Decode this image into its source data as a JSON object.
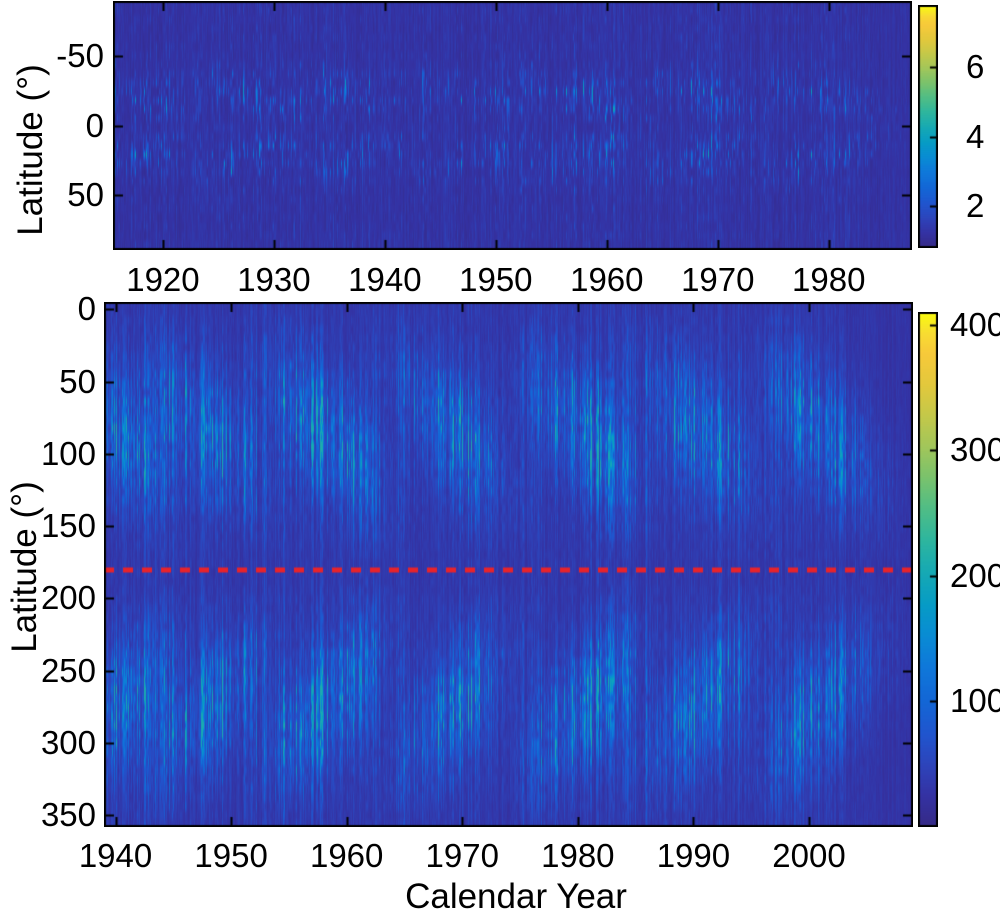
{
  "figure": {
    "bg_color": "#ffffff",
    "text_color": "#000000",
    "axis_color": "#000000"
  },
  "colormap": {
    "name": "parula",
    "stops": [
      [
        0.0,
        "#352a87"
      ],
      [
        0.06,
        "#3432a3"
      ],
      [
        0.12,
        "#2d44bb"
      ],
      [
        0.18,
        "#2055ce"
      ],
      [
        0.25,
        "#1268d6"
      ],
      [
        0.31,
        "#0f78da"
      ],
      [
        0.37,
        "#098bd4"
      ],
      [
        0.43,
        "#069bc6"
      ],
      [
        0.5,
        "#18aab2"
      ],
      [
        0.56,
        "#2fb69d"
      ],
      [
        0.62,
        "#51bd85"
      ],
      [
        0.68,
        "#7ac26c"
      ],
      [
        0.74,
        "#a2c65a"
      ],
      [
        0.8,
        "#c5c849"
      ],
      [
        0.86,
        "#e3c83c"
      ],
      [
        0.92,
        "#f7c93a"
      ],
      [
        0.96,
        "#f8dc32"
      ],
      [
        1.0,
        "#f9fb0e"
      ]
    ]
  },
  "chart_data": [
    {
      "id": "top_butterfly_heatmap",
      "type": "heatmap",
      "title": "",
      "xlabel": "",
      "ylabel": "Latitude (°)",
      "x_range": [
        1915.5,
        1987.5
      ],
      "x_ticks": [
        1920,
        1930,
        1940,
        1950,
        1960,
        1970,
        1980
      ],
      "y_range": [
        -90,
        90
      ],
      "y_ticks": [
        -50,
        0,
        50
      ],
      "grid": false,
      "legend": "colorbar-right",
      "colorbar": {
        "min": 0.8,
        "max": 7.8,
        "ticks": [
          2,
          4,
          6
        ]
      },
      "content_summary": "faint sunspot-area butterfly diagram; sparse thin bright streaks near +/-10..35 deg latitude following ~11-year solar cycles",
      "solar_cycle_peaks": [
        1917.5,
        1928.2,
        1937.8,
        1947.8,
        1957.8,
        1968.5,
        1979.5
      ],
      "cycle_amps": [
        0.55,
        0.6,
        0.65,
        0.6,
        0.85,
        0.65,
        0.6
      ],
      "cycle_width_years": 3.2,
      "band": {
        "equator": 0,
        "center_offset": 22,
        "sigma": 9.5,
        "drift_per_year": 2.2,
        "min_offset": 7,
        "max_offset": 38
      },
      "texture": {
        "bg_value": 1.22,
        "bg_stripe": 0.26,
        "bg_pixel": 0.2,
        "streak_base": 0.05,
        "streak_gain": 1.3,
        "streak_sparsity": 3.5,
        "vfac_base": 0.0,
        "vfac_gain": 1.5,
        "vfac_pow": 2.2,
        "blob_gain": 3.1,
        "blob_clamp": 2.6,
        "broad_fraction": 0.16,
        "seed": 7
      }
    },
    {
      "id": "bottom_butterfly_heatmap",
      "type": "heatmap",
      "title": "",
      "xlabel": "Calendar Year",
      "ylabel": "Latitude (°)",
      "x_range": [
        1939,
        2009
      ],
      "x_ticks": [
        1940,
        1950,
        1960,
        1970,
        1980,
        1990,
        2000
      ],
      "y_range": [
        -5,
        358
      ],
      "y_ticks": [
        0,
        50,
        100,
        150,
        200,
        250,
        300,
        350
      ],
      "grid": false,
      "legend": "colorbar-right",
      "colorbar": {
        "min": 0,
        "max": 410,
        "ticks": [
          100,
          200,
          300,
          400
        ]
      },
      "content_summary": "bright butterfly-wing heatmap; blue activity wings around rows 40-140 and 220-320 (equator row 180 marked by red dashed line), cycles peaking ~1940, 1948, 1958, 1969, 1980, 1990, 2001",
      "red_dashed_line": {
        "y_value": 180,
        "color": "#e8232b",
        "dash": [
          10,
          9
        ],
        "line_width": 5
      },
      "solar_cycle_peaks": [
        1940.0,
        1948.2,
        1958.0,
        1969.3,
        1980.4,
        1990.4,
        2001.0
      ],
      "cycle_amps": [
        0.9,
        0.95,
        1.1,
        0.92,
        1.02,
        0.98,
        0.88
      ],
      "cycle_width_years": 3.4,
      "band": {
        "equator": 180,
        "center_offset": 95,
        "sigma": 30,
        "drift_per_year": 7,
        "min_offset": 50,
        "max_offset": 132
      },
      "texture": {
        "bg_value": 27,
        "bg_stripe": 13,
        "bg_pixel": 9,
        "streak_base": 0.18,
        "streak_gain": 1.25,
        "streak_sparsity": 2.2,
        "vfac_base": 0.38,
        "vfac_gain": 1.0,
        "vfac_pow": 1.0,
        "blob_gain": 135,
        "blob_clamp": 175,
        "broad_fraction": 0.1,
        "seed": 31
      }
    }
  ]
}
